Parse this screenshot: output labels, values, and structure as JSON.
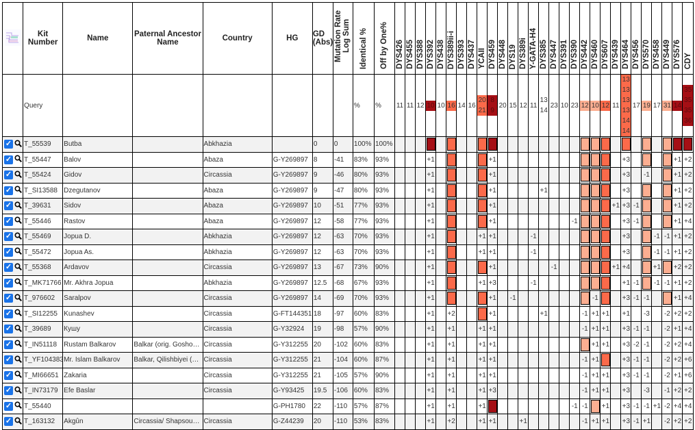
{
  "colors": {
    "dark": "#a50f15",
    "orange": "#fb6a4a",
    "light": "#fcae91"
  },
  "headers": {
    "kit": "Kit Number",
    "name": "Name",
    "paternal": "Paternal Ancestor Name",
    "country": "Country",
    "hg": "HG",
    "gd": "GD (Abs)",
    "mut": "Mutation Rate Log Sum",
    "identical": "Identical %",
    "offbyone": "Off by One%"
  },
  "query": {
    "label": "Query",
    "identical": "%",
    "offbyone": "%"
  },
  "markers": [
    {
      "name": "DYS426",
      "q": [
        "11"
      ]
    },
    {
      "name": "DYS455",
      "q": [
        "11"
      ]
    },
    {
      "name": "DYS388",
      "q": [
        "12"
      ]
    },
    {
      "name": "DYS392",
      "q": [
        "10"
      ],
      "color": "dark"
    },
    {
      "name": "DYS438",
      "q": [
        "10"
      ]
    },
    {
      "name": "DYS389ii-i",
      "q": [
        "16"
      ],
      "color": "orange"
    },
    {
      "name": "DYS393",
      "q": [
        "14"
      ]
    },
    {
      "name": "DYS437",
      "q": [
        "16"
      ]
    },
    {
      "name": "YCAII",
      "q": [
        "20",
        "21"
      ],
      "color": "orange"
    },
    {
      "name": "DYS459",
      "q": [
        "8",
        "9"
      ],
      "color": "dark"
    },
    {
      "name": "DYS448",
      "q": [
        "20"
      ]
    },
    {
      "name": "DYS19",
      "q": [
        "15"
      ]
    },
    {
      "name": "DYS389i",
      "q": [
        "12"
      ]
    },
    {
      "name": "Y-GATA-H4",
      "q": [
        "11"
      ]
    },
    {
      "name": "DYS385",
      "q": [
        "13",
        "14"
      ]
    },
    {
      "name": "DYS447",
      "q": [
        "23"
      ]
    },
    {
      "name": "DYS391",
      "q": [
        "10"
      ]
    },
    {
      "name": "DYS390",
      "q": [
        "23"
      ]
    },
    {
      "name": "DYS442",
      "q": [
        "12"
      ],
      "color": "light"
    },
    {
      "name": "DYS460",
      "q": [
        "10"
      ],
      "color": "light"
    },
    {
      "name": "DYS607",
      "q": [
        "12"
      ],
      "color": "orange"
    },
    {
      "name": "DYS439",
      "q": [
        "11"
      ]
    },
    {
      "name": "DYS464",
      "q": [
        "13",
        "13",
        "13",
        "13",
        "14",
        "14"
      ],
      "color": "orange"
    },
    {
      "name": "DYS456",
      "q": [
        "17"
      ]
    },
    {
      "name": "DYS570",
      "q": [
        "19"
      ],
      "color": "light"
    },
    {
      "name": "DYS458",
      "q": [
        "17"
      ]
    },
    {
      "name": "DYS449",
      "q": [
        "31"
      ],
      "color": "light"
    },
    {
      "name": "DYS576",
      "q": [
        "14"
      ],
      "color": "dark"
    },
    {
      "name": "CDY",
      "q": [
        "35",
        "35",
        "35",
        "36"
      ],
      "color": "dark"
    }
  ],
  "rows": [
    {
      "kit": "T_55539",
      "name": "Butba",
      "paternal": "",
      "country": "Abkhazia",
      "hg": "",
      "gd": "0",
      "mut": "0",
      "identical": "100%",
      "offbyone": "100%",
      "diffs": {}
    },
    {
      "kit": "T_55447",
      "name": "Balov",
      "paternal": "",
      "country": "Abaza",
      "hg": "G-Y269897",
      "gd": "8",
      "mut": "-41",
      "identical": "83%",
      "offbyone": "93%",
      "diffs": {
        "DYS392": "+1",
        "DYS459": "+1",
        "DYS464": "+3",
        "DYS576": "+1",
        "CDY": "+2"
      }
    },
    {
      "kit": "T_55424",
      "name": "Gidov",
      "paternal": "",
      "country": "Circassia",
      "hg": "G-Y269897",
      "gd": "9",
      "mut": "-46",
      "identical": "80%",
      "offbyone": "93%",
      "diffs": {
        "DYS392": "+1",
        "DYS459": "+1",
        "DYS464": "+3",
        "DYS570": "-1",
        "DYS576": "+1",
        "CDY": "+2"
      }
    },
    {
      "kit": "T_SI13588",
      "name": "Dzegutanov",
      "paternal": "",
      "country": "Abaza",
      "hg": "G-Y269897",
      "gd": "9",
      "mut": "-47",
      "identical": "80%",
      "offbyone": "93%",
      "diffs": {
        "DYS392": "+1",
        "DYS459": "+1",
        "DYS385": "+1",
        "DYS464": "+3",
        "DYS576": "+1",
        "CDY": "+2"
      }
    },
    {
      "kit": "T_39631",
      "name": "Sidov",
      "paternal": "",
      "country": "Abaza",
      "hg": "G-Y269897",
      "gd": "10",
      "mut": "-51",
      "identical": "77%",
      "offbyone": "93%",
      "diffs": {
        "DYS392": "+1",
        "DYS459": "+1",
        "DYS439": "+1",
        "DYS464": "+3",
        "DYS456": "-1",
        "DYS576": "+1",
        "CDY": "+2"
      }
    },
    {
      "kit": "T_55446",
      "name": "Rastov",
      "paternal": "",
      "country": "Abaza",
      "hg": "G-Y269897",
      "gd": "12",
      "mut": "-58",
      "identical": "77%",
      "offbyone": "93%",
      "diffs": {
        "DYS392": "+1",
        "DYS459": "+1",
        "DYS390": "-1",
        "DYS464": "+3",
        "DYS456": "-1",
        "DYS576": "+1",
        "CDY": "+4"
      }
    },
    {
      "kit": "T_55469",
      "name": "Jopua D.",
      "paternal": "",
      "country": "Abkhazia",
      "hg": "G-Y269897",
      "gd": "12",
      "mut": "-63",
      "identical": "70%",
      "offbyone": "93%",
      "diffs": {
        "DYS392": "+1",
        "YCAII": "+1",
        "DYS459": "+1",
        "Y-GATA-H4": "-1",
        "DYS464": "+3",
        "DYS458": "-1",
        "DYS449": "-1",
        "DYS576": "+1",
        "CDY": "+2"
      }
    },
    {
      "kit": "T_55472",
      "name": "Jopua As.",
      "paternal": "",
      "country": "Abkhazia",
      "hg": "G-Y269897",
      "gd": "12",
      "mut": "-63",
      "identical": "70%",
      "offbyone": "93%",
      "diffs": {
        "DYS392": "+1",
        "YCAII": "+1",
        "DYS459": "+1",
        "Y-GATA-H4": "-1",
        "DYS464": "+3",
        "DYS458": "-1",
        "DYS449": "-1",
        "DYS576": "+1",
        "CDY": "+2"
      }
    },
    {
      "kit": "T_55368",
      "name": "Ardavov",
      "paternal": "",
      "country": "Circassia",
      "hg": "G-Y269897",
      "gd": "13",
      "mut": "-67",
      "identical": "73%",
      "offbyone": "90%",
      "diffs": {
        "DYS392": "+1",
        "DYS459": "+1",
        "DYS447": "-1",
        "DYS439": "+1",
        "DYS464": "+4",
        "DYS458": "+1",
        "DYS576": "+2",
        "CDY": "+2"
      }
    },
    {
      "kit": "T_MK71766",
      "name": "Mr. Akhra Jopua",
      "paternal": "",
      "country": "Abkhazia",
      "hg": "G-Y269897",
      "gd": "12.5",
      "mut": "-68",
      "identical": "67%",
      "offbyone": "93%",
      "diffs": {
        "DYS392": "+1",
        "YCAII": "+1",
        "DYS459": "+3",
        "Y-GATA-H4": "-1",
        "DYS464": "+1",
        "DYS456": "-1",
        "DYS458": "-1",
        "DYS449": "-1",
        "DYS576": "+1",
        "CDY": "+2"
      }
    },
    {
      "kit": "T_976602",
      "name": "Saralpov",
      "paternal": "",
      "country": "Circassia",
      "hg": "G-Y269897",
      "gd": "14",
      "mut": "-69",
      "identical": "70%",
      "offbyone": "93%",
      "diffs": {
        "DYS392": "+1",
        "DYS459": "+1",
        "DYS19": "-1",
        "DYS460": "-1",
        "DYS464": "+3",
        "DYS456": "-1",
        "DYS570": "-1",
        "DYS576": "+1",
        "CDY": "+4"
      }
    },
    {
      "kit": "T_SI12255",
      "name": "Kunashev",
      "paternal": "",
      "country": "Circassia",
      "hg": "G-FT144351",
      "gd": "18",
      "mut": "-97",
      "identical": "60%",
      "offbyone": "83%",
      "diffs": {
        "DYS392": "+1",
        "DYS389ii-i": "+2",
        "DYS459": "+1",
        "DYS385": "+1",
        "DYS442": "-1",
        "DYS460": "+1",
        "DYS607": "+1",
        "DYS464": "+1",
        "DYS570": "-3",
        "DYS449": "-2",
        "DYS576": "+2",
        "CDY": "+2"
      }
    },
    {
      "kit": "T_39689",
      "name": "Кушу",
      "paternal": "",
      "country": "Circassia",
      "hg": "G-Y32924",
      "gd": "19",
      "mut": "-98",
      "identical": "57%",
      "offbyone": "90%",
      "diffs": {
        "DYS392": "+1",
        "DYS389ii-i": "+1",
        "YCAII": "+1",
        "DYS459": "+1",
        "DYS442": "-1",
        "DYS460": "+1",
        "DYS607": "+1",
        "DYS464": "+3",
        "DYS456": "-1",
        "DYS570": "-1",
        "DYS449": "-2",
        "DYS576": "+1",
        "CDY": "+4"
      }
    },
    {
      "kit": "T_IN51118",
      "name": "Rustam Balkarov",
      "paternal": "Balkar (orig. Gosho…",
      "country": "Circassia",
      "hg": "G-Y312255",
      "gd": "20",
      "mut": "-102",
      "identical": "60%",
      "offbyone": "83%",
      "diffs": {
        "DYS392": "+1",
        "DYS389ii-i": "+1",
        "YCAII": "+1",
        "DYS459": "+1",
        "DYS460": "+1",
        "DYS607": "+1",
        "DYS464": "+3",
        "DYS456": "-2",
        "DYS570": "-1",
        "DYS449": "-2",
        "DYS576": "+2",
        "CDY": "+4"
      }
    },
    {
      "kit": "T_YF104383",
      "name": "Mr. Islam Balkarov",
      "paternal": "Balkar, Qilishbiyei (…",
      "country": "Circassia",
      "hg": "G-Y312255",
      "gd": "21",
      "mut": "-104",
      "identical": "60%",
      "offbyone": "87%",
      "diffs": {
        "DYS392": "+1",
        "DYS389ii-i": "+1",
        "YCAII": "+1",
        "DYS459": "+1",
        "DYS442": "-1",
        "DYS460": "+1",
        "DYS464": "+3",
        "DYS456": "-1",
        "DYS570": "-1",
        "DYS449": "-2",
        "DYS576": "+2",
        "CDY": "+6"
      }
    },
    {
      "kit": "T_MI66651",
      "name": "Zakaria",
      "paternal": "",
      "country": "Circassia",
      "hg": "G-Y312255",
      "gd": "21",
      "mut": "-105",
      "identical": "57%",
      "offbyone": "90%",
      "diffs": {
        "DYS392": "+1",
        "DYS389ii-i": "+1",
        "YCAII": "+1",
        "DYS459": "+1",
        "DYS442": "-1",
        "DYS460": "+1",
        "DYS607": "+1",
        "DYS464": "+3",
        "DYS456": "-1",
        "DYS570": "-1",
        "DYS449": "-2",
        "DYS576": "+1",
        "CDY": "+6"
      }
    },
    {
      "kit": "T_IN73179",
      "name": "Efe Baslar",
      "paternal": "",
      "country": "Circassia",
      "hg": "G-Y93425",
      "gd": "19.5",
      "mut": "-106",
      "identical": "60%",
      "offbyone": "83%",
      "diffs": {
        "DYS392": "+1",
        "DYS389ii-i": "+1",
        "YCAII": "+1",
        "DYS459": "+3",
        "DYS442": "-1",
        "DYS460": "+1",
        "DYS607": "+1",
        "DYS464": "+3",
        "DYS570": "-3",
        "DYS449": "-1",
        "DYS576": "+2",
        "CDY": "+2"
      }
    },
    {
      "kit": "T_55440",
      "name": "",
      "paternal": "",
      "country": "",
      "hg": "G-PH1780",
      "gd": "22",
      "mut": "-110",
      "identical": "57%",
      "offbyone": "87%",
      "diffs": {
        "DYS392": "+1",
        "DYS389ii-i": "+1",
        "YCAII": "+1",
        "DYS390": "-1",
        "DYS442": "-1",
        "DYS607": "+1",
        "DYS464": "+3",
        "DYS456": "-1",
        "DYS570": "-1",
        "DYS458": "+1",
        "DYS449": "-2",
        "DYS576": "+4",
        "CDY": "+4"
      }
    },
    {
      "kit": "T_163132",
      "name": "Akgûn",
      "paternal": "Circassia/ Shapsou…",
      "country": "Circassia",
      "hg": "G-Z44239",
      "gd": "20",
      "mut": "-110",
      "identical": "53%",
      "offbyone": "83%",
      "diffs": {
        "DYS392": "+1",
        "DYS389ii-i": "+2",
        "YCAII": "+1",
        "DYS459": "+1",
        "DYS389i": "+1",
        "DYS442": "-1",
        "DYS460": "+1",
        "DYS607": "+1",
        "DYS464": "+3",
        "DYS456": "-1",
        "DYS570": "+1",
        "DYS449": "-2",
        "DYS576": "+2",
        "CDY": "+2"
      }
    }
  ]
}
